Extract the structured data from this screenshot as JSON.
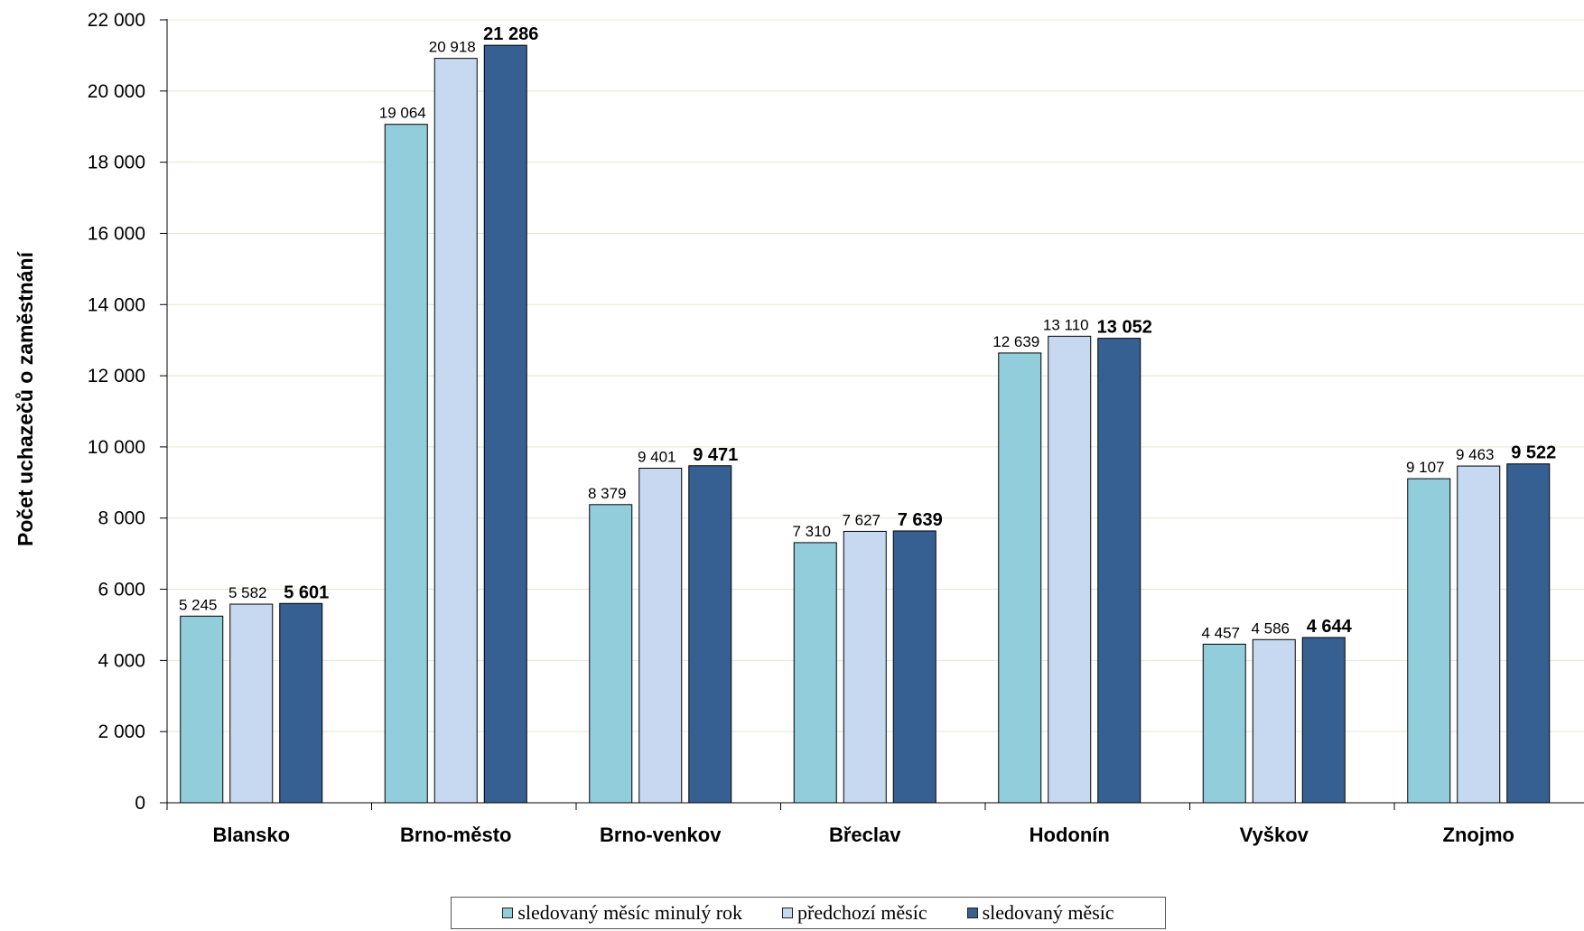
{
  "chart_data": {
    "type": "bar",
    "ylabel": "Počet uchazečů o zaměstnání",
    "xlabel": "",
    "ylim": [
      0,
      22000
    ],
    "yticks": [
      0,
      2000,
      4000,
      6000,
      8000,
      10000,
      12000,
      14000,
      16000,
      18000,
      20000,
      22000
    ],
    "ytick_labels": [
      "0",
      "2 000",
      "4 000",
      "6 000",
      "8 000",
      "10 000",
      "12 000",
      "14 000",
      "16 000",
      "18 000",
      "20 000",
      "22 000"
    ],
    "grid": true,
    "legend_position": "bottom",
    "categories": [
      "Blansko",
      "Brno-město",
      "Brno-venkov",
      "Břeclav",
      "Hodonín",
      "Vyškov",
      "Znojmo"
    ],
    "series": [
      {
        "name": "sledovaný měsíc minulý rok",
        "color": "#92CDDC",
        "values": [
          5245,
          19064,
          8379,
          7310,
          12639,
          4457,
          9107
        ],
        "labels": [
          "5 245",
          "19 064",
          "8 379",
          "7 310",
          "12 639",
          "4 457",
          "9 107"
        ],
        "label_bold": false
      },
      {
        "name": "předchozí měsíc",
        "color": "#C6D9F1",
        "values": [
          5582,
          20918,
          9401,
          7627,
          13110,
          4586,
          9463
        ],
        "labels": [
          "5 582",
          "20 918",
          "9 401",
          "7 627",
          "13 110",
          "4 586",
          "9 463"
        ],
        "label_bold": false
      },
      {
        "name": "sledovaný měsíc",
        "color": "#366092",
        "values": [
          5601,
          21286,
          9471,
          7639,
          13052,
          4644,
          9522
        ],
        "labels": [
          "5 601",
          "21 286",
          "9 471",
          "7 639",
          "13 052",
          "4 644",
          "9 522"
        ],
        "label_bold": true
      }
    ],
    "gridline_color": "#E3E7CF",
    "bar_outline_color": "#000000"
  },
  "legend": {
    "items": [
      {
        "label": "sledovaný měsíc minulý rok",
        "color": "#92CDDC"
      },
      {
        "label": "předchozí měsíc",
        "color": "#C6D9F1"
      },
      {
        "label": "sledovaný měsíc",
        "color": "#366092"
      }
    ]
  }
}
